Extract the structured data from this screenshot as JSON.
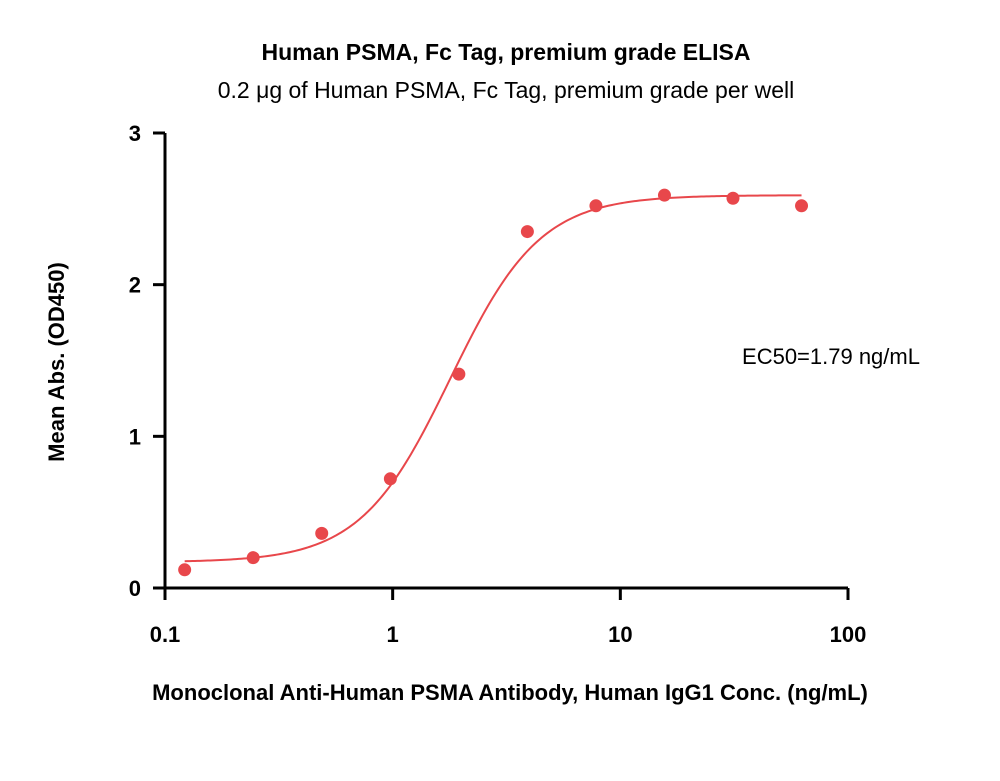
{
  "chart_data": {
    "type": "scatter",
    "title": "Human PSMA, Fc Tag, premium grade ELISA",
    "subtitle": "0.2 μg of Human PSMA, Fc Tag, premium grade per well",
    "xlabel": "Monoclonal Anti-Human PSMA Antibody, Human IgG1 Conc. (ng/mL)",
    "ylabel": "Mean Abs. (OD450)",
    "x_scale": "log",
    "xlim": [
      0.1,
      100
    ],
    "ylim": [
      0,
      3
    ],
    "x_ticks": [
      "0.1",
      "1",
      "10",
      "100"
    ],
    "y_ticks": [
      "0",
      "1",
      "2",
      "3"
    ],
    "grid": false,
    "annotation": "EC50=1.79 ng/mL",
    "point_color": "#e8474b",
    "line_color": "#e8474b",
    "series": [
      {
        "x": [
          0.122,
          0.244,
          0.488,
          0.977,
          1.953,
          3.906,
          7.813,
          15.625,
          31.25,
          62.5
        ],
        "y": [
          0.12,
          0.2,
          0.36,
          0.72,
          1.41,
          2.35,
          2.52,
          2.59,
          2.57,
          2.52
        ]
      }
    ],
    "fit": {
      "model": "4PL",
      "bottom": 0.17,
      "top": 2.59,
      "ec50": 1.79,
      "hill": 2.2,
      "x_range": [
        0.122,
        62.5
      ]
    }
  }
}
